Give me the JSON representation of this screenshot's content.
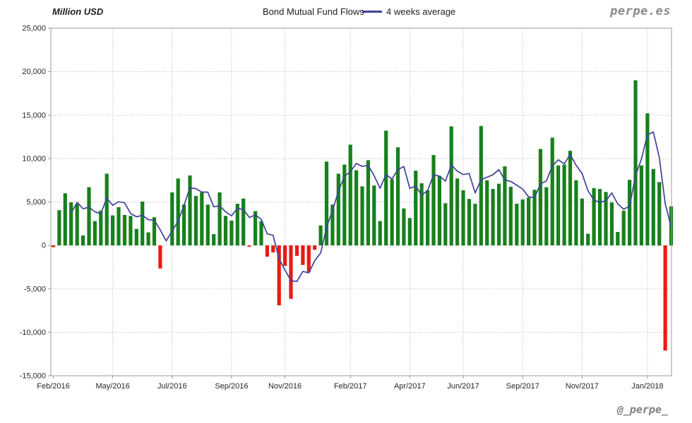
{
  "header": {
    "y_axis_title": "Million USD",
    "title": "Bond Mutual Fund Flows",
    "legend_label": "4 weeks average",
    "watermark": "perpe.es"
  },
  "footer": {
    "handle": "@_perpe_"
  },
  "chart_data": {
    "type": "bar",
    "title": "Bond Mutual Fund Flows",
    "ylabel": "Million USD",
    "ylim": [
      -15000,
      25000
    ],
    "ytick_interval": 5000,
    "grid": true,
    "legend_position": "top",
    "legend": [
      {
        "name": "4 weeks average",
        "type": "line",
        "color": "#3f4199"
      }
    ],
    "colors": {
      "bar_positive": "#17801c",
      "bar_negative": "#e81b15",
      "average_line": "#3f4199",
      "gridline": "#b5b5b5",
      "plot_border": "#9b9b9b",
      "axis_text": "#262626"
    },
    "x_unit": "week",
    "x_ticks": [
      {
        "index": 0,
        "label": "Feb/2016"
      },
      {
        "index": 10,
        "label": "May/2016"
      },
      {
        "index": 20,
        "label": "Jul/2016"
      },
      {
        "index": 30,
        "label": "Sep/2016"
      },
      {
        "index": 39,
        "label": "Nov/2016"
      },
      {
        "index": 50,
        "label": "Feb/2017"
      },
      {
        "index": 60,
        "label": "Apr/2017"
      },
      {
        "index": 69,
        "label": "Jun/2017"
      },
      {
        "index": 79,
        "label": "Sep/2017"
      },
      {
        "index": 89,
        "label": "Nov/2017"
      },
      {
        "index": 100,
        "label": "Jan/2018"
      }
    ],
    "values": [
      -200,
      4050,
      6000,
      4950,
      4800,
      1150,
      6700,
      2800,
      4000,
      8250,
      3450,
      4400,
      3500,
      3400,
      1900,
      5050,
      1500,
      3250,
      -2650,
      0,
      6100,
      7700,
      4700,
      8050,
      5700,
      6100,
      4700,
      1300,
      6100,
      3400,
      2850,
      4800,
      5400,
      -150,
      3950,
      2800,
      -1300,
      -800,
      -6900,
      -2350,
      -6150,
      -1200,
      -2250,
      -3050,
      -500,
      2300,
      9650,
      4700,
      8250,
      9300,
      11600,
      8650,
      6800,
      9800,
      6900,
      2800,
      13200,
      7600,
      11300,
      4250,
      3150,
      8600,
      7150,
      6350,
      10400,
      8000,
      4850,
      13700,
      7700,
      6350,
      5350,
      4800,
      13750,
      7500,
      6500,
      7100,
      9100,
      6750,
      4800,
      5300,
      5500,
      6400,
      11100,
      6700,
      12400,
      9200,
      9300,
      10900,
      7500,
      5400,
      1350,
      6600,
      6500,
      6150,
      4950,
      1550,
      4000,
      7550,
      19000,
      9200,
      15200,
      8800,
      7300,
      -12100,
      4500
    ],
    "average_window_weeks": 4
  }
}
